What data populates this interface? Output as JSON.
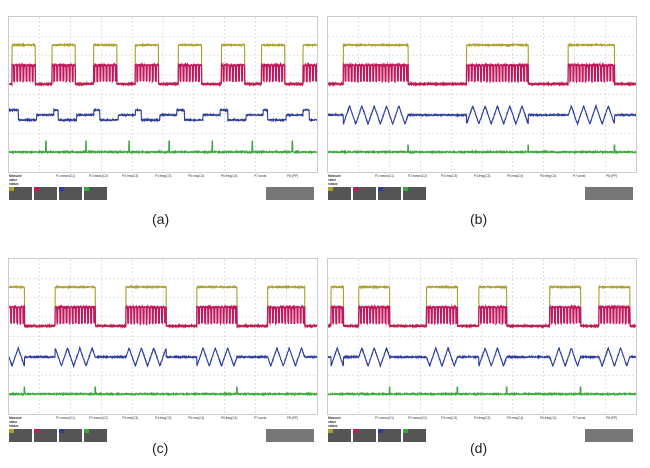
{
  "colors": {
    "c1": "#a8a028",
    "c2": "#c0185c",
    "c3": "#2a3a9a",
    "c4": "#3aa83a",
    "grid": "#c8c8c8"
  },
  "measure": {
    "title": "Measure",
    "value": "value",
    "status": "status",
    "params": [
      "P1:mean(C1)",
      "P2:mean(C2)",
      "P3:rms(C3)",
      "P4:freq(C3)",
      "P5:rms(C4)",
      "P6:freq(C4)",
      "P7:const",
      "P8:(PP)"
    ]
  },
  "panels": [
    {
      "label": "(a)",
      "c3_mode": "square",
      "bursts": [
        [
          0.1,
          0.85
        ],
        [
          1.4,
          2.15
        ],
        [
          2.75,
          3.5
        ],
        [
          4.1,
          4.85
        ],
        [
          5.5,
          6.25
        ],
        [
          6.9,
          7.65
        ],
        [
          8.2,
          8.95
        ],
        [
          9.55,
          10
        ]
      ],
      "c4_spikes": [
        1.2,
        2.5,
        3.9,
        5.2,
        6.6,
        7.9,
        9.2
      ]
    },
    {
      "label": "(b)",
      "c3_mode": "sine",
      "bursts": [
        [
          0.5,
          2.6
        ],
        [
          4.5,
          6.5
        ],
        [
          7.8,
          9.3
        ]
      ],
      "c4_spikes": [
        2.6,
        6.5,
        9.3
      ]
    },
    {
      "label": "(c)",
      "c3_mode": "sine",
      "bursts": [
        [
          0,
          0.5
        ],
        [
          1.5,
          2.8
        ],
        [
          3.8,
          5.1
        ],
        [
          6.1,
          7.4
        ],
        [
          8.4,
          9.6
        ]
      ],
      "c4_spikes": [
        0.5,
        2.8,
        7.4
      ]
    },
    {
      "label": "(d)",
      "c3_mode": "sine",
      "bursts": [
        [
          0.1,
          0.5
        ],
        [
          1.0,
          2.0
        ],
        [
          3.2,
          4.2
        ],
        [
          4.9,
          5.8
        ],
        [
          7.2,
          8.2
        ],
        [
          8.8,
          9.8
        ]
      ],
      "c4_spikes": [
        2.0,
        4.2,
        5.8,
        8.2
      ]
    }
  ]
}
